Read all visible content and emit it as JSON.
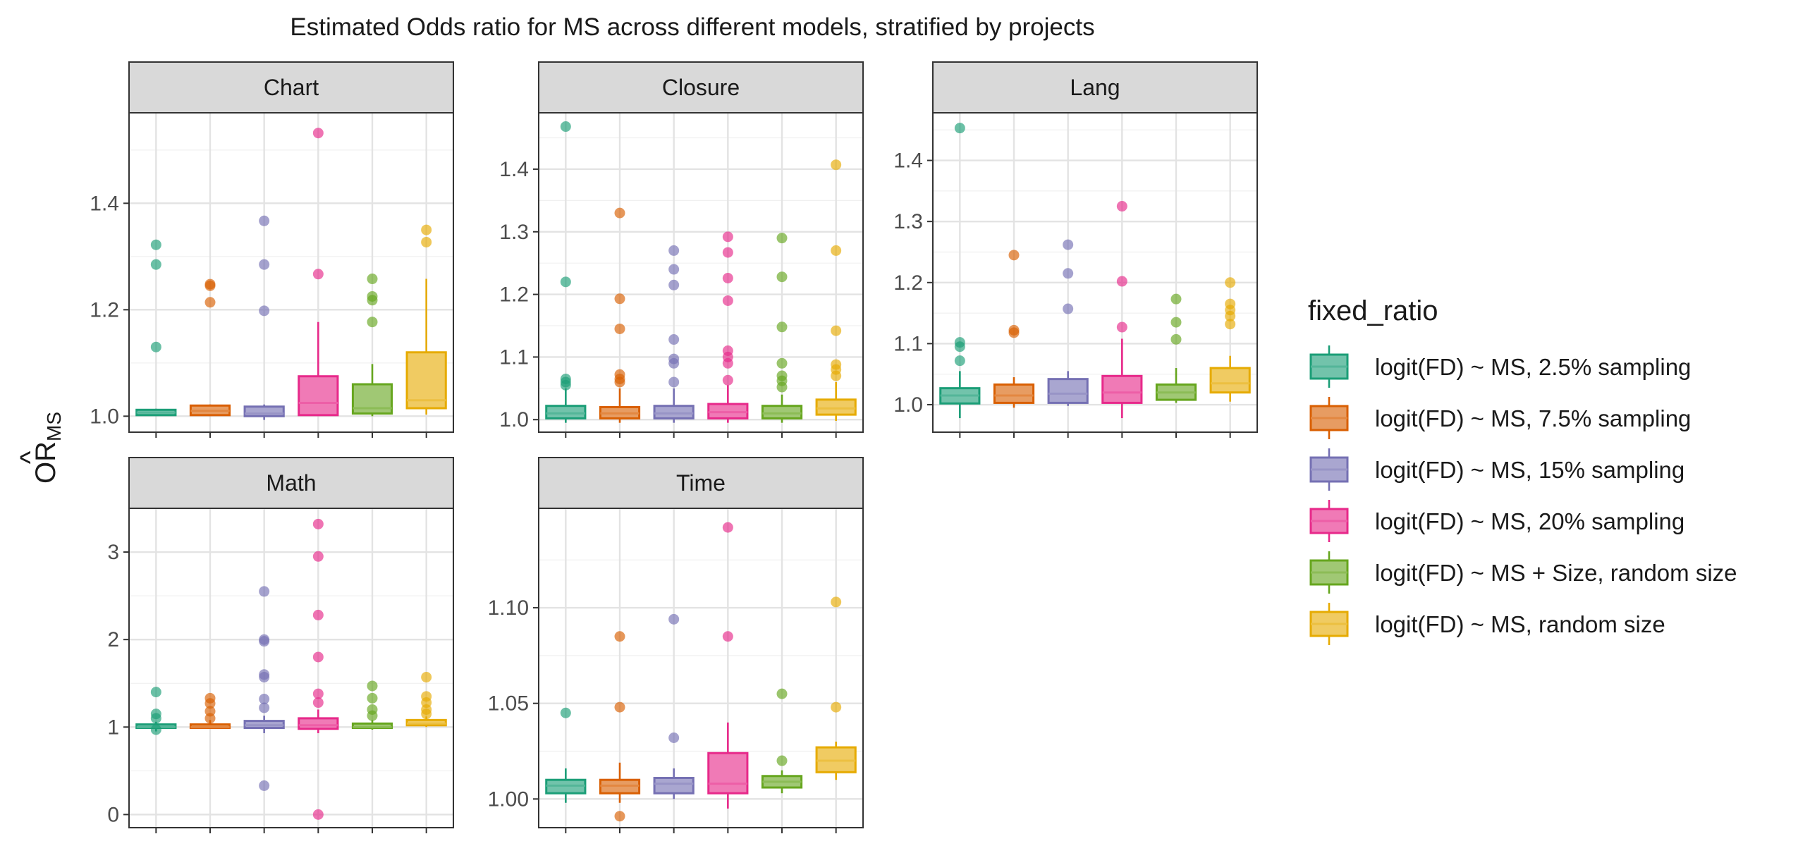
{
  "chart_data": {
    "type": "boxplot",
    "title": "Estimated Odds ratio for MS across different models, stratified by projects",
    "ylabel": "OR",
    "ylabel_subscript": "MS",
    "legend": {
      "title": "fixed_ratio",
      "position": "right",
      "entries": [
        {
          "label": "logit(FD) ~ MS, 2.5% sampling",
          "color": "#1B9E77"
        },
        {
          "label": "logit(FD) ~ MS, 7.5% sampling",
          "color": "#D95F02"
        },
        {
          "label": "logit(FD) ~ MS, 15% sampling",
          "color": "#7570B3"
        },
        {
          "label": "logit(FD) ~ MS, 20% sampling",
          "color": "#E7298A"
        },
        {
          "label": "logit(FD) ~ MS + Size, random size",
          "color": "#66A61E"
        },
        {
          "label": "logit(FD) ~ MS, random size",
          "color": "#E6AB02"
        }
      ]
    },
    "grid": true,
    "panels": [
      {
        "name": "Chart",
        "ylim": [
          0.97,
          1.57
        ],
        "yticks": [
          1.0,
          1.2,
          1.4
        ],
        "tick_labels": [
          "1.0",
          "1.2",
          "1.4"
        ],
        "boxes": [
          {
            "min": 1.0,
            "q1": 1.002,
            "median": 1.007,
            "q3": 1.012,
            "max": 1.014,
            "outliers": [
              1.13,
              1.285,
              1.322
            ]
          },
          {
            "min": 1.0,
            "q1": 1.002,
            "median": 1.01,
            "q3": 1.02,
            "max": 1.022,
            "outliers": [
              1.214,
              1.245,
              1.248
            ]
          },
          {
            "min": 0.993,
            "q1": 1.0,
            "median": 1.005,
            "q3": 1.018,
            "max": 1.022,
            "outliers": [
              1.198,
              1.285,
              1.367
            ]
          },
          {
            "min": 1.0,
            "q1": 1.002,
            "median": 1.025,
            "q3": 1.075,
            "max": 1.177,
            "outliers": [
              1.267,
              1.532
            ]
          },
          {
            "min": 1.0,
            "q1": 1.005,
            "median": 1.015,
            "q3": 1.06,
            "max": 1.098,
            "outliers": [
              1.177,
              1.218,
              1.225,
              1.258
            ]
          },
          {
            "min": 1.003,
            "q1": 1.015,
            "median": 1.03,
            "q3": 1.12,
            "max": 1.258,
            "outliers": [
              1.327,
              1.35
            ]
          }
        ]
      },
      {
        "name": "Closure",
        "ylim": [
          0.98,
          1.49
        ],
        "yticks": [
          1.0,
          1.1,
          1.2,
          1.3,
          1.4
        ],
        "tick_labels": [
          "1.0",
          "1.1",
          "1.2",
          "1.3",
          "1.4"
        ],
        "boxes": [
          {
            "min": 0.995,
            "q1": 1.002,
            "median": 1.01,
            "q3": 1.022,
            "max": 1.05,
            "outliers": [
              1.055,
              1.06,
              1.065,
              1.22,
              1.468
            ]
          },
          {
            "min": 0.995,
            "q1": 1.002,
            "median": 1.01,
            "q3": 1.02,
            "max": 1.05,
            "outliers": [
              1.06,
              1.065,
              1.072,
              1.145,
              1.193,
              1.33
            ]
          },
          {
            "min": 0.995,
            "q1": 1.002,
            "median": 1.01,
            "q3": 1.022,
            "max": 1.05,
            "outliers": [
              1.06,
              1.09,
              1.097,
              1.128,
              1.215,
              1.24,
              1.27
            ]
          },
          {
            "min": 0.995,
            "q1": 1.002,
            "median": 1.012,
            "q3": 1.025,
            "max": 1.055,
            "outliers": [
              1.063,
              1.09,
              1.1,
              1.11,
              1.19,
              1.226,
              1.267,
              1.292
            ]
          },
          {
            "min": 0.995,
            "q1": 1.002,
            "median": 1.01,
            "q3": 1.022,
            "max": 1.04,
            "outliers": [
              1.052,
              1.062,
              1.07,
              1.09,
              1.148,
              1.228,
              1.29
            ]
          },
          {
            "min": 0.998,
            "q1": 1.008,
            "median": 1.018,
            "q3": 1.032,
            "max": 1.06,
            "outliers": [
              1.07,
              1.08,
              1.088,
              1.142,
              1.27,
              1.407
            ]
          }
        ]
      },
      {
        "name": "Lang",
        "ylim": [
          0.955,
          1.478
        ],
        "yticks": [
          1.0,
          1.1,
          1.2,
          1.3,
          1.4
        ],
        "tick_labels": [
          "1.0",
          "1.1",
          "1.2",
          "1.3",
          "1.4"
        ],
        "boxes": [
          {
            "min": 0.978,
            "q1": 1.002,
            "median": 1.015,
            "q3": 1.027,
            "max": 1.055,
            "outliers": [
              1.072,
              1.095,
              1.102,
              1.453
            ]
          },
          {
            "min": 0.995,
            "q1": 1.003,
            "median": 1.015,
            "q3": 1.033,
            "max": 1.045,
            "outliers": [
              1.118,
              1.122,
              1.245
            ]
          },
          {
            "min": 0.998,
            "q1": 1.003,
            "median": 1.018,
            "q3": 1.042,
            "max": 1.055,
            "outliers": [
              1.157,
              1.215,
              1.262
            ]
          },
          {
            "min": 0.978,
            "q1": 1.003,
            "median": 1.02,
            "q3": 1.047,
            "max": 1.108,
            "outliers": [
              1.127,
              1.202,
              1.325
            ]
          },
          {
            "min": 1.003,
            "q1": 1.008,
            "median": 1.02,
            "q3": 1.033,
            "max": 1.06,
            "outliers": [
              1.107,
              1.135,
              1.173
            ]
          },
          {
            "min": 1.005,
            "q1": 1.02,
            "median": 1.035,
            "q3": 1.06,
            "max": 1.08,
            "outliers": [
              1.132,
              1.145,
              1.155,
              1.165,
              1.2
            ]
          }
        ]
      },
      {
        "name": "Math",
        "ylim": [
          -0.15,
          3.5
        ],
        "yticks": [
          0,
          1,
          2,
          3
        ],
        "tick_labels": [
          "0",
          "1",
          "2",
          "3"
        ],
        "boxes": [
          {
            "min": 0.95,
            "q1": 0.99,
            "median": 1.0,
            "q3": 1.03,
            "max": 1.06,
            "outliers": [
              0.97,
              1.1,
              1.15,
              1.4
            ]
          },
          {
            "min": 0.98,
            "q1": 0.99,
            "median": 1.0,
            "q3": 1.03,
            "max": 1.08,
            "outliers": [
              1.1,
              1.18,
              1.27,
              1.33
            ]
          },
          {
            "min": 0.93,
            "q1": 0.99,
            "median": 1.02,
            "q3": 1.07,
            "max": 1.13,
            "outliers": [
              0.33,
              1.22,
              1.32,
              1.57,
              1.6,
              1.98,
              2.0,
              2.55
            ]
          },
          {
            "min": 0.93,
            "q1": 0.98,
            "median": 1.02,
            "q3": 1.1,
            "max": 1.2,
            "outliers": [
              0.0,
              1.28,
              1.38,
              1.8,
              2.28,
              2.95,
              3.32
            ]
          },
          {
            "min": 0.97,
            "q1": 0.99,
            "median": 1.0,
            "q3": 1.04,
            "max": 1.08,
            "outliers": [
              1.13,
              1.2,
              1.33,
              1.47
            ]
          },
          {
            "min": 1.0,
            "q1": 1.02,
            "median": 1.04,
            "q3": 1.08,
            "max": 1.12,
            "outliers": [
              1.15,
              1.2,
              1.28,
              1.35,
              1.57
            ]
          }
        ]
      },
      {
        "name": "Time",
        "ylim": [
          0.985,
          1.152
        ],
        "yticks": [
          1.0,
          1.05,
          1.1
        ],
        "tick_labels": [
          "1.00",
          "1.05",
          "1.10"
        ],
        "boxes": [
          {
            "min": 0.998,
            "q1": 1.003,
            "median": 1.007,
            "q3": 1.01,
            "max": 1.016,
            "outliers": [
              1.045
            ]
          },
          {
            "min": 0.998,
            "q1": 1.003,
            "median": 1.007,
            "q3": 1.01,
            "max": 1.019,
            "outliers": [
              0.991,
              1.048,
              1.085
            ]
          },
          {
            "min": 1.0,
            "q1": 1.003,
            "median": 1.008,
            "q3": 1.011,
            "max": 1.016,
            "outliers": [
              1.032,
              1.094
            ]
          },
          {
            "min": 0.995,
            "q1": 1.003,
            "median": 1.008,
            "q3": 1.024,
            "max": 1.04,
            "outliers": [
              1.085,
              1.142
            ]
          },
          {
            "min": 1.003,
            "q1": 1.006,
            "median": 1.009,
            "q3": 1.012,
            "max": 1.015,
            "outliers": [
              1.02,
              1.055
            ]
          },
          {
            "min": 1.01,
            "q1": 1.014,
            "median": 1.02,
            "q3": 1.027,
            "max": 1.03,
            "outliers": [
              1.048,
              1.103
            ]
          }
        ]
      }
    ]
  }
}
